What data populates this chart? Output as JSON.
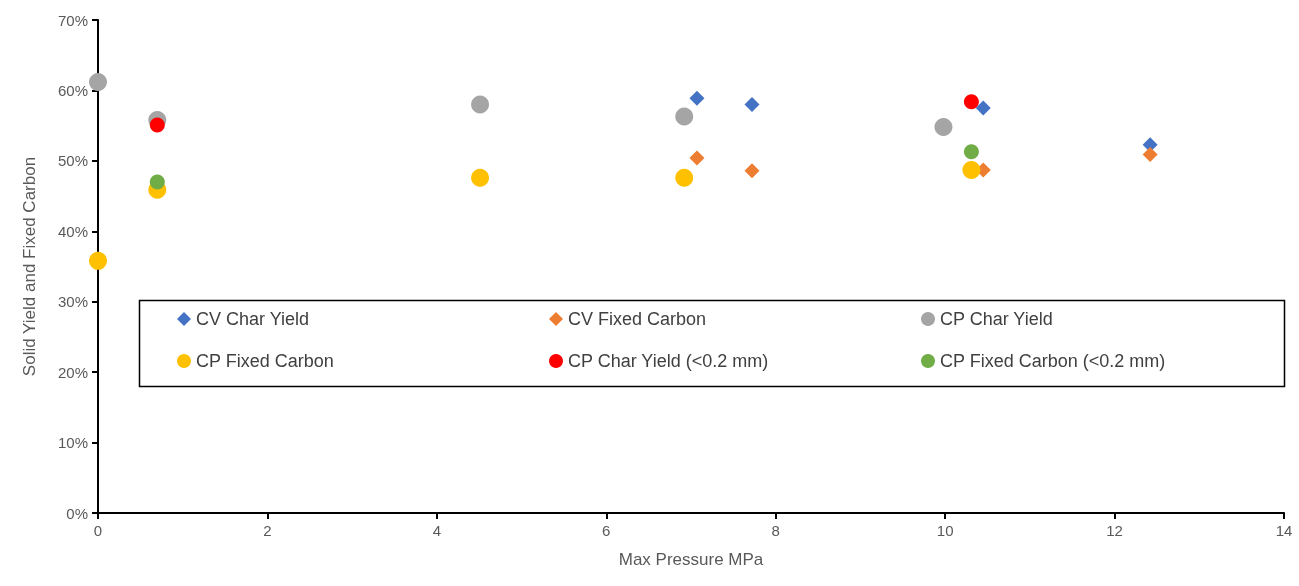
{
  "chart_data": {
    "type": "scatter",
    "xlabel": "Max Pressure MPa",
    "ylabel": "Solid Yield and Fixed Carbon",
    "legend": "center",
    "grid": false,
    "xlim": [
      0,
      14
    ],
    "xticks": [
      0,
      2,
      4,
      6,
      8,
      10,
      12,
      14
    ],
    "ylim": [
      0,
      70
    ],
    "yticks": [
      {
        "value": 0,
        "label": "0%"
      },
      {
        "value": 10,
        "label": "10%"
      },
      {
        "value": 20,
        "label": "20%"
      },
      {
        "value": 30,
        "label": "30%"
      },
      {
        "value": 40,
        "label": "40%"
      },
      {
        "value": 50,
        "label": "50%"
      },
      {
        "value": 60,
        "label": "60%"
      },
      {
        "value": 70,
        "label": "70%"
      }
    ],
    "series": [
      {
        "name": "CV Char Yield",
        "color": "#4472c4",
        "marker": "diamond",
        "x": [
          7.07,
          7.72,
          10.45,
          12.42
        ],
        "values": [
          58.9,
          58.0,
          57.5,
          52.3
        ]
      },
      {
        "name": "CV Fixed Carbon",
        "color": "#ed7d31",
        "marker": "diamond",
        "x": [
          7.07,
          7.72,
          10.45,
          12.42
        ],
        "values": [
          50.4,
          48.6,
          48.7,
          50.9
        ]
      },
      {
        "name": "CP Char Yield",
        "color": "#a5a5a5",
        "marker": "circle",
        "x": [
          0,
          0.7,
          4.51,
          6.92,
          9.98
        ],
        "values": [
          61.2,
          55.8,
          58.0,
          56.3,
          54.8
        ]
      },
      {
        "name": "CP Fixed Carbon",
        "color": "#ffc000",
        "marker": "circle",
        "x": [
          0,
          0.7,
          4.51,
          6.92,
          10.31
        ],
        "values": [
          35.8,
          45.9,
          47.6,
          47.6,
          48.7
        ]
      },
      {
        "name": "CP Char Yield (<0.2 mm)",
        "color": "#ff0000",
        "marker": "circle",
        "x": [
          0.7,
          10.31
        ],
        "values": [
          55.1,
          58.4
        ]
      },
      {
        "name": "CP Fixed Carbon (<0.2 mm)",
        "color": "#70ad47",
        "marker": "circle",
        "x": [
          0.7,
          10.31
        ],
        "values": [
          47.0,
          51.3
        ]
      }
    ]
  }
}
